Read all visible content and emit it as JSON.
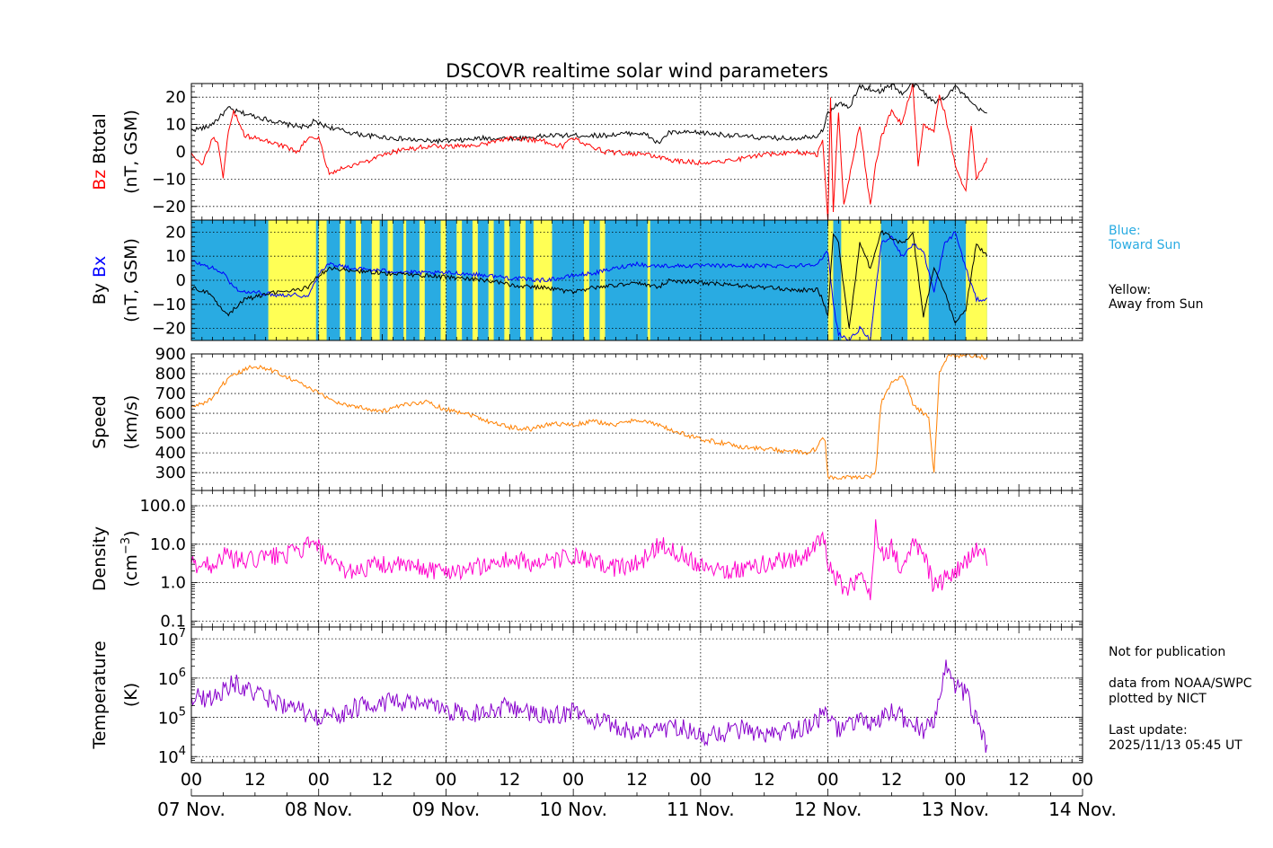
{
  "title": "DSCOVR realtime solar wind parameters",
  "colors": {
    "bz": "#ff0000",
    "btotal": "#000000",
    "bx": "#0000ff",
    "by": "#000000",
    "speed": "#ff8000",
    "density": "#ff00cc",
    "temperature": "#8800cc",
    "toward": "#29abe2",
    "away": "#ffff55",
    "legend_blue_text": "#29abe2"
  },
  "legend": {
    "blue_title": "Blue:",
    "blue_text": "Toward Sun",
    "yellow_title": "Yellow:",
    "yellow_text": "Away from Sun"
  },
  "notes": {
    "not_for_pub": "Not for publication",
    "source1": "data from NOAA/SWPC",
    "source2": "plotted by NICT",
    "last_update_label": "Last update:",
    "last_update_value": "2025/11/13 05:45 UT"
  },
  "chart_data": {
    "type": "line",
    "x_hour_ticks": [
      "00",
      "12",
      "00",
      "12",
      "00",
      "12",
      "00",
      "12",
      "00",
      "12",
      "00",
      "12",
      "00",
      "12",
      "00"
    ],
    "x_date_ticks": [
      "07 Nov.",
      "08 Nov.",
      "09 Nov.",
      "10 Nov.",
      "11 Nov.",
      "12 Nov.",
      "13 Nov.",
      "14 Nov."
    ],
    "xlim_hours": [
      0,
      168
    ],
    "panels": [
      {
        "id": "bfield",
        "ylabel_parts": [
          {
            "text": "Bz",
            "color": "bz"
          },
          {
            "text": " Btotal",
            "color": "btotal"
          }
        ],
        "ylabel2": "(nT, GSM)",
        "ylim": [
          -25,
          25
        ],
        "yticks": [
          20,
          10,
          0,
          -10,
          -20
        ],
        "ytick_labels": [
          "20",
          "10",
          "0",
          "−10",
          "−20"
        ],
        "series": [
          {
            "name": "Btotal",
            "color": "btotal",
            "x": [
              0,
              3,
              5,
              7,
              8,
              10,
              14,
              18,
              22,
              23,
              26,
              30,
              33,
              38,
              44,
              50,
              55,
              62,
              68,
              72,
              78,
              84,
              86,
              88,
              90,
              96,
              102,
              108,
              114,
              118,
              119,
              120,
              122,
              124,
              126,
              130,
              132,
              134,
              136,
              138,
              140,
              142,
              144,
              146,
              148,
              150
            ],
            "y": [
              8,
              9,
              12,
              16,
              15,
              14,
              12,
              10,
              9,
              11,
              9,
              7,
              6,
              5,
              4,
              4,
              5,
              5,
              6,
              6,
              6,
              7,
              6,
              3,
              7,
              7,
              6,
              5,
              5,
              6,
              8,
              14,
              18,
              16,
              24,
              22,
              25,
              21,
              25,
              22,
              18,
              20,
              24,
              20,
              16,
              14
            ]
          },
          {
            "name": "Bz",
            "color": "bz",
            "x": [
              0,
              2,
              4,
              5,
              6,
              7,
              8,
              10,
              14,
              16,
              20,
              22,
              24,
              26,
              30,
              34,
              38,
              44,
              50,
              56,
              60,
              66,
              70,
              72,
              78,
              86,
              88,
              90,
              96,
              102,
              108,
              114,
              118,
              119,
              120,
              120.5,
              121,
              122,
              123,
              124,
              126,
              128,
              129,
              130,
              132,
              134,
              136,
              137,
              138,
              140,
              141,
              142,
              144,
              146,
              147,
              148,
              150
            ],
            "y": [
              0,
              -5,
              5,
              3,
              -10,
              8,
              15,
              6,
              4,
              3,
              0,
              5,
              5,
              -8,
              -5,
              -3,
              0,
              2,
              2,
              3,
              5,
              4,
              2,
              5,
              0,
              -1,
              -2,
              -3,
              -4,
              -3,
              -1,
              0,
              -1,
              5,
              -25,
              20,
              -22,
              15,
              -20,
              -10,
              10,
              -20,
              -5,
              5,
              15,
              10,
              25,
              -5,
              10,
              8,
              20,
              15,
              -5,
              -15,
              10,
              -10,
              -3
            ]
          }
        ]
      },
      {
        "id": "bxby",
        "ylabel_parts": [
          {
            "text": "By",
            "color": "by"
          },
          {
            "text": " Bx",
            "color": "bx"
          }
        ],
        "ylabel2": "(nT, GSM)",
        "ylim": [
          -25,
          25
        ],
        "yticks": [
          20,
          10,
          0,
          -10,
          -20
        ],
        "ytick_labels": [
          "20",
          "10",
          "0",
          "−10",
          "−20"
        ],
        "sector_bands": {
          "toward_base": true,
          "away_ranges": [
            [
              14.5,
              23.5
            ],
            [
              24,
              25.5
            ],
            [
              28,
              29
            ],
            [
              31,
              32
            ],
            [
              34,
              35.5
            ],
            [
              37,
              38
            ],
            [
              40,
              40.5
            ],
            [
              43,
              44
            ],
            [
              47,
              48
            ],
            [
              50,
              51
            ],
            [
              53,
              54
            ],
            [
              56,
              57
            ],
            [
              59,
              60
            ],
            [
              62,
              63
            ],
            [
              64.5,
              68
            ],
            [
              74,
              75
            ],
            [
              77,
              78
            ],
            [
              86,
              86.5
            ],
            [
              120,
              121
            ],
            [
              122.5,
              130
            ],
            [
              135,
              139
            ],
            [
              146,
              150
            ]
          ]
        },
        "series": [
          {
            "name": "Bx",
            "color": "bx",
            "x": [
              0,
              4,
              6,
              8,
              10,
              12,
              16,
              20,
              22,
              24,
              26,
              30,
              36,
              44,
              50,
              56,
              60,
              66,
              70,
              72,
              76,
              80,
              84,
              86,
              90,
              96,
              102,
              108,
              114,
              118,
              119,
              120,
              121,
              122,
              124,
              126,
              128,
              130,
              132,
              134,
              136,
              138,
              140,
              142,
              144,
              146,
              148,
              150
            ],
            "y": [
              8,
              5,
              3,
              -3,
              -5,
              -5,
              -6,
              -6,
              -7,
              3,
              7,
              5,
              4,
              3,
              3,
              2,
              1,
              0,
              1,
              2,
              3,
              5,
              7,
              6,
              6,
              6,
              6,
              6,
              6,
              7,
              9,
              12,
              -10,
              -22,
              -25,
              -20,
              -25,
              15,
              18,
              10,
              15,
              12,
              -5,
              15,
              20,
              5,
              -8,
              -8
            ]
          },
          {
            "name": "By",
            "color": "by",
            "x": [
              0,
              3,
              5,
              7,
              8,
              10,
              12,
              16,
              20,
              22,
              24,
              26,
              30,
              36,
              44,
              50,
              56,
              60,
              66,
              72,
              76,
              80,
              84,
              88,
              90,
              96,
              102,
              108,
              114,
              118,
              119,
              120,
              121,
              122,
              124,
              126,
              128,
              130,
              132,
              134,
              136,
              138,
              140,
              142,
              144,
              146,
              148,
              150
            ],
            "y": [
              -3,
              -5,
              -10,
              -14,
              -12,
              -8,
              -7,
              -5,
              -4,
              -3,
              2,
              5,
              4,
              3,
              2,
              1,
              0,
              -2,
              -3,
              -5,
              -3,
              -2,
              -1,
              -3,
              0,
              -1,
              -2,
              -3,
              -4,
              -4,
              -8,
              -15,
              20,
              15,
              -20,
              15,
              5,
              20,
              18,
              15,
              20,
              -15,
              5,
              -5,
              -18,
              -12,
              15,
              10
            ]
          }
        ]
      },
      {
        "id": "speed",
        "ylabel": "Speed",
        "ylabel2": "(km/s)",
        "ylim": [
          210,
          900
        ],
        "yticks": [
          900,
          800,
          700,
          600,
          500,
          400,
          300
        ],
        "ytick_labels": [
          "900",
          "800",
          "700",
          "600",
          "500",
          "400",
          "300"
        ],
        "series": [
          {
            "name": "Speed",
            "color": "speed",
            "x": [
              0,
              3,
              5,
              6,
              8,
              10,
              12,
              16,
              20,
              24,
              28,
              32,
              36,
              40,
              44,
              48,
              52,
              56,
              60,
              64,
              68,
              72,
              76,
              80,
              84,
              88,
              92,
              96,
              100,
              104,
              108,
              112,
              116,
              118,
              119,
              119.5,
              120,
              122,
              124,
              126,
              128,
              129,
              130,
              131,
              132,
              134,
              136,
              138,
              139,
              140,
              141,
              142,
              143,
              144,
              146,
              148,
              150
            ],
            "y": [
              630,
              660,
              700,
              750,
              790,
              820,
              840,
              810,
              760,
              700,
              650,
              630,
              610,
              640,
              660,
              620,
              600,
              560,
              530,
              520,
              550,
              540,
              560,
              540,
              570,
              540,
              500,
              470,
              450,
              430,
              420,
              410,
              400,
              420,
              480,
              460,
              280,
              270,
              275,
              280,
              285,
              300,
              650,
              700,
              750,
              800,
              650,
              600,
              580,
              290,
              800,
              850,
              900,
              880,
              900,
              890,
              880
            ]
          }
        ]
      },
      {
        "id": "density",
        "ylabel": "Density",
        "ylabel2": "(cm",
        "ylabel2_sup": "−3",
        "ylabel2_end": ")",
        "log": true,
        "ylim": [
          0.07,
          250
        ],
        "yticks": [
          100,
          10,
          1,
          0.1
        ],
        "ytick_labels": [
          "100.0",
          "10.0",
          "1.0",
          "0.1"
        ],
        "series": [
          {
            "name": "Density",
            "color": "density",
            "x": [
              0,
              4,
              6,
              8,
              10,
              12,
              16,
              20,
              22,
              24,
              26,
              30,
              36,
              42,
              48,
              54,
              60,
              66,
              72,
              76,
              80,
              84,
              86,
              88,
              90,
              96,
              102,
              108,
              112,
              116,
              118,
              119,
              120,
              122,
              124,
              126,
              128,
              129,
              130,
              132,
              134,
              136,
              138,
              140,
              142,
              144,
              146,
              148,
              150
            ],
            "y": [
              3,
              3,
              5,
              4,
              3.5,
              4,
              5,
              6,
              10,
              8,
              3,
              2,
              3,
              2.5,
              2,
              2.5,
              4,
              3,
              5,
              3,
              2.5,
              3,
              5,
              10,
              8,
              3,
              2,
              3,
              4,
              5,
              10,
              20,
              3,
              1,
              0.7,
              1.5,
              0.4,
              40,
              5,
              8,
              2,
              10,
              6,
              0.8,
              1.2,
              2,
              3,
              8,
              4
            ]
          }
        ]
      },
      {
        "id": "temperature",
        "ylabel": "Temperature",
        "ylabel2": "(K)",
        "log": true,
        "ylim": [
          7000,
          20000000
        ],
        "yticks": [
          10000000,
          1000000,
          100000,
          10000
        ],
        "ytick_base": "10",
        "ytick_exps": [
          "7",
          "6",
          "5",
          "4"
        ],
        "series": [
          {
            "name": "Temperature",
            "color": "temperature",
            "x": [
              0,
              4,
              6,
              8,
              10,
              12,
              16,
              20,
              24,
              28,
              32,
              36,
              40,
              44,
              48,
              52,
              56,
              60,
              64,
              68,
              72,
              76,
              80,
              84,
              88,
              92,
              96,
              100,
              104,
              108,
              112,
              116,
              118,
              119,
              120,
              122,
              124,
              126,
              128,
              130,
              132,
              134,
              136,
              138,
              140,
              142,
              143,
              144,
              146,
              148,
              150
            ],
            "y": [
              350000,
              300000,
              500000,
              800000,
              500000,
              400000,
              250000,
              150000,
              90000,
              120000,
              200000,
              250000,
              220000,
              200000,
              150000,
              120000,
              150000,
              200000,
              120000,
              100000,
              150000,
              80000,
              60000,
              40000,
              50000,
              60000,
              30000,
              40000,
              50000,
              30000,
              40000,
              60000,
              80000,
              150000,
              80000,
              50000,
              60000,
              100000,
              60000,
              80000,
              150000,
              100000,
              70000,
              50000,
              60000,
              2000000,
              1000000,
              700000,
              400000,
              80000,
              15000
            ]
          }
        ]
      }
    ]
  }
}
